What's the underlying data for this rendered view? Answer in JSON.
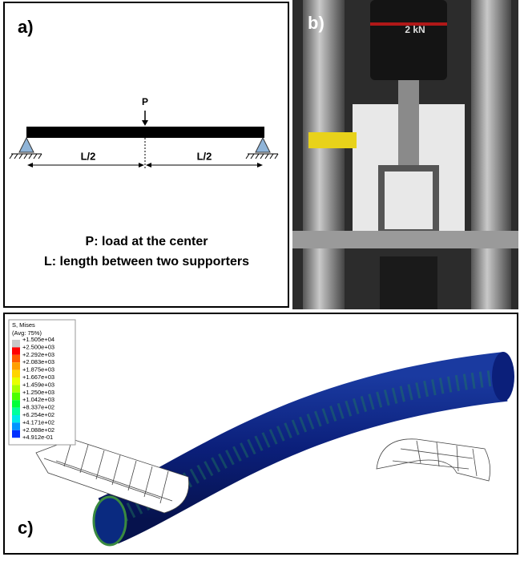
{
  "panel_a": {
    "label": "a)",
    "load": "P",
    "half_left": "L/2",
    "half_right": "L/2",
    "caption_1": "P: load at the center",
    "caption_2": "L: length between two supporters"
  },
  "panel_b": {
    "label": "b)",
    "load_cell": "2 kN"
  },
  "panel_c": {
    "label": "c)",
    "legend_title": "S, Mises",
    "legend_subtitle": "(Avg: 75%)",
    "legend_labels": [
      "+1.505e+04",
      "+2.500e+03",
      "+2.292e+03",
      "+2.083e+03",
      "+1.875e+03",
      "+1.667e+03",
      "+1.459e+03",
      "+1.250e+03",
      "+1.042e+03",
      "+8.337e+02",
      "+6.254e+02",
      "+4.171e+02",
      "+2.088e+02",
      "+4.912e-01"
    ],
    "legend_colors": [
      "#c8c8c8",
      "#ff0000",
      "#ff5a00",
      "#ff9f00",
      "#ffd400",
      "#e8ff00",
      "#a8ff00",
      "#4cff00",
      "#00ff3a",
      "#00ff9c",
      "#00e8e8",
      "#0094ff",
      "#0030ff"
    ]
  }
}
